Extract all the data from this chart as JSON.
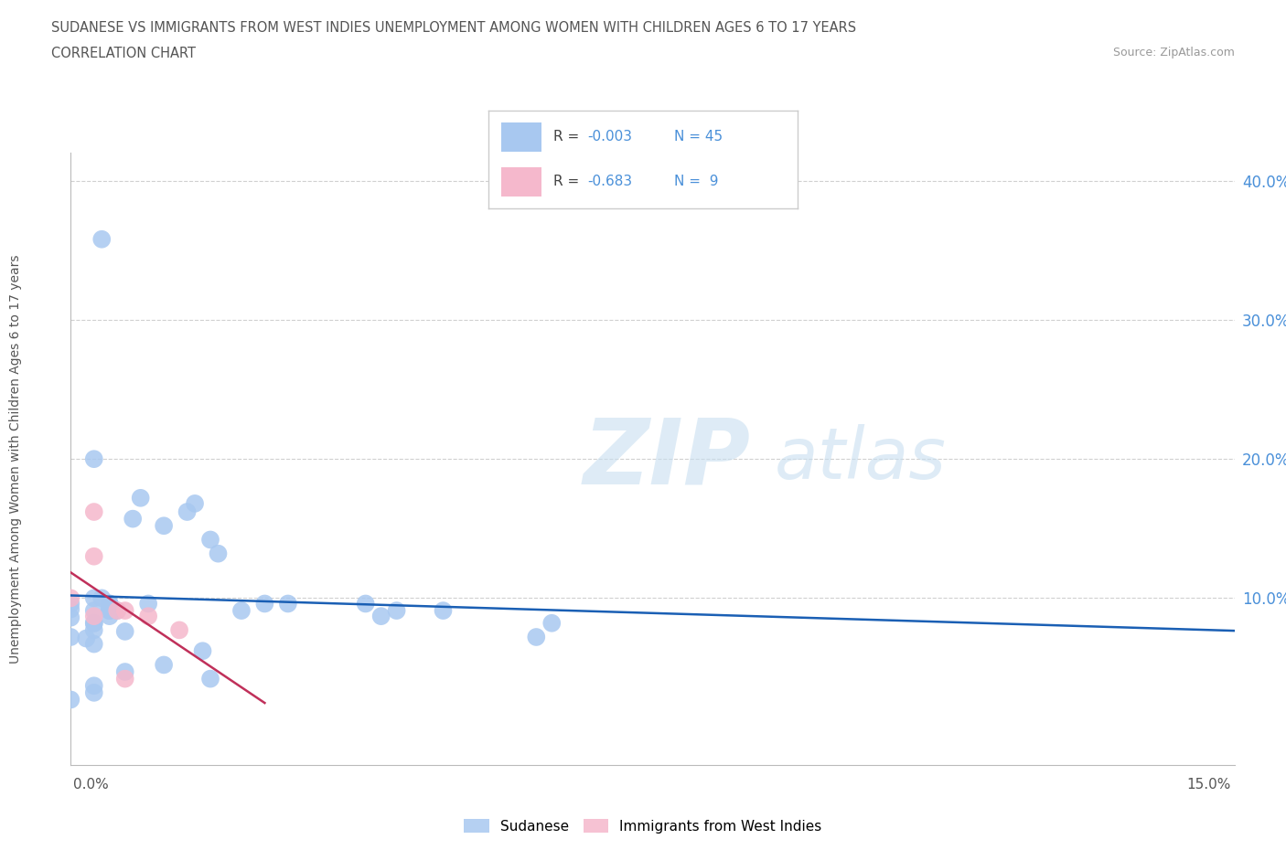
{
  "title_line1": "SUDANESE VS IMMIGRANTS FROM WEST INDIES UNEMPLOYMENT AMONG WOMEN WITH CHILDREN AGES 6 TO 17 YEARS",
  "title_line2": "CORRELATION CHART",
  "source": "Source: ZipAtlas.com",
  "xlabel_ticks": [
    "0.0%",
    "15.0%"
  ],
  "ylabel": "Unemployment Among Women with Children Ages 6 to 17 years",
  "ytick_labels": [
    "10.0%",
    "20.0%",
    "30.0%",
    "40.0%"
  ],
  "ytick_values": [
    0.1,
    0.2,
    0.3,
    0.4
  ],
  "xlim": [
    0.0,
    0.15
  ],
  "ylim": [
    -0.02,
    0.42
  ],
  "sudanese_x": [
    0.0,
    0.003,
    0.003,
    0.005,
    0.005,
    0.005,
    0.003,
    0.0,
    0.0,
    0.0,
    0.003,
    0.003,
    0.002,
    0.005,
    0.005,
    0.003,
    0.004,
    0.008,
    0.009,
    0.012,
    0.015,
    0.016,
    0.018,
    0.019,
    0.022,
    0.025,
    0.004,
    0.012,
    0.017,
    0.018,
    0.028,
    0.038,
    0.04,
    0.048,
    0.06,
    0.003,
    0.006,
    0.01,
    0.007,
    0.003,
    0.007,
    0.003,
    0.0,
    0.062,
    0.042
  ],
  "sudanese_y": [
    0.092,
    0.091,
    0.082,
    0.091,
    0.087,
    0.096,
    0.1,
    0.096,
    0.086,
    0.072,
    0.077,
    0.067,
    0.071,
    0.091,
    0.096,
    0.082,
    0.1,
    0.157,
    0.172,
    0.152,
    0.162,
    0.168,
    0.142,
    0.132,
    0.091,
    0.096,
    0.358,
    0.052,
    0.062,
    0.042,
    0.096,
    0.096,
    0.087,
    0.091,
    0.072,
    0.2,
    0.091,
    0.096,
    0.076,
    0.037,
    0.047,
    0.032,
    0.027,
    0.082,
    0.091
  ],
  "westindies_x": [
    0.0,
    0.003,
    0.003,
    0.006,
    0.007,
    0.01,
    0.014,
    0.007,
    0.003
  ],
  "westindies_y": [
    0.1,
    0.162,
    0.087,
    0.091,
    0.091,
    0.087,
    0.077,
    0.042,
    0.13
  ],
  "sudanese_color": "#a8c8f0",
  "westindies_color": "#f5b8cc",
  "sudanese_line_color": "#1a5fb4",
  "westindies_line_color": "#c0305a",
  "grid_color": "#d0d0d0",
  "background_color": "#ffffff",
  "title_color": "#555555",
  "source_color": "#999999",
  "ylabel_color": "#555555",
  "ytick_color": "#4a90d9",
  "xtick_color": "#555555"
}
